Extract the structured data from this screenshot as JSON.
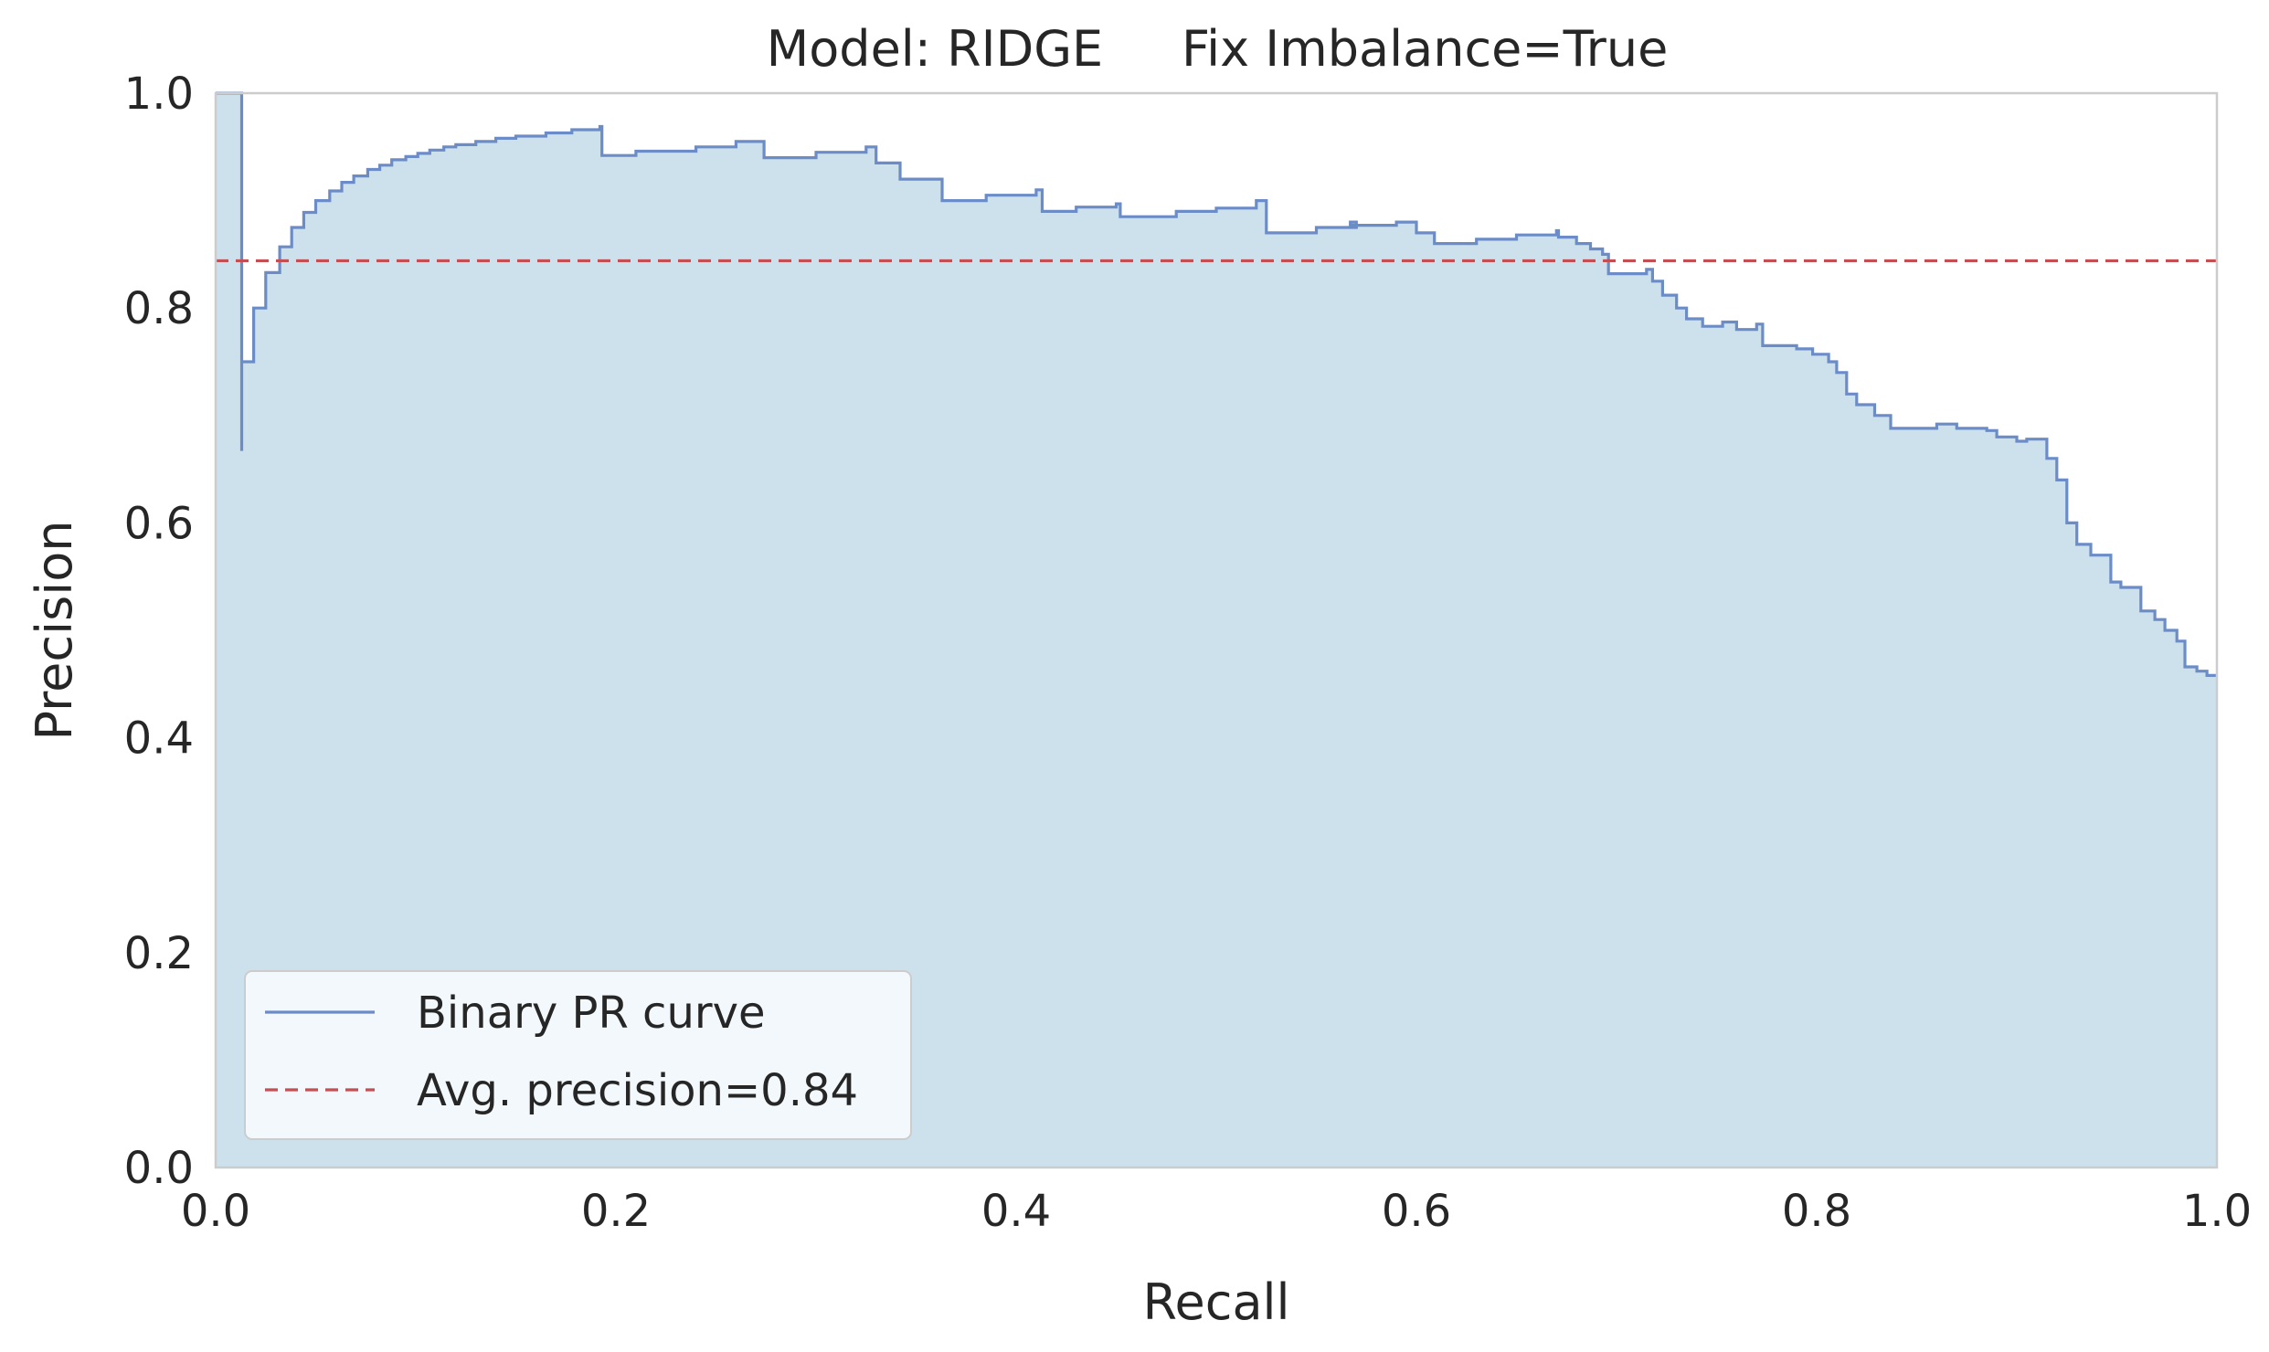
{
  "chart_data": {
    "type": "area",
    "title": "Model: RIDGE     Fix Imbalance=True",
    "xlabel": "Recall",
    "ylabel": "Precision",
    "xlim": [
      0.0,
      1.0
    ],
    "ylim": [
      0.0,
      1.0
    ],
    "x_ticks": [
      "0.0",
      "0.2",
      "0.4",
      "0.6",
      "0.8",
      "1.0"
    ],
    "y_ticks": [
      "0.0",
      "0.2",
      "0.4",
      "0.6",
      "0.8",
      "1.0"
    ],
    "grid": false,
    "legend_position": "lower-left",
    "colors": {
      "curve": "#6b8cc7",
      "fill": "#cce1ec",
      "avg_line": "#c44e52",
      "frame": "#cccccc",
      "legend_bg": "#f2f8fb"
    },
    "series": [
      {
        "name": "Binary PR curve",
        "style": "step-post",
        "filled": true,
        "points": [
          [
            0.0,
            1.0
          ],
          [
            0.013,
            1.0
          ],
          [
            0.013,
            0.667
          ],
          [
            0.013,
            0.75
          ],
          [
            0.019,
            0.75
          ],
          [
            0.019,
            0.8
          ],
          [
            0.025,
            0.8
          ],
          [
            0.025,
            0.833
          ],
          [
            0.032,
            0.833
          ],
          [
            0.032,
            0.857
          ],
          [
            0.038,
            0.857
          ],
          [
            0.038,
            0.875
          ],
          [
            0.044,
            0.875
          ],
          [
            0.044,
            0.889
          ],
          [
            0.05,
            0.889
          ],
          [
            0.05,
            0.9
          ],
          [
            0.057,
            0.9
          ],
          [
            0.057,
            0.909
          ],
          [
            0.063,
            0.909
          ],
          [
            0.063,
            0.917
          ],
          [
            0.069,
            0.917
          ],
          [
            0.069,
            0.923
          ],
          [
            0.076,
            0.923
          ],
          [
            0.076,
            0.929
          ],
          [
            0.082,
            0.929
          ],
          [
            0.082,
            0.933
          ],
          [
            0.088,
            0.933
          ],
          [
            0.088,
            0.938
          ],
          [
            0.095,
            0.938
          ],
          [
            0.095,
            0.941
          ],
          [
            0.101,
            0.941
          ],
          [
            0.101,
            0.944
          ],
          [
            0.107,
            0.944
          ],
          [
            0.107,
            0.947
          ],
          [
            0.114,
            0.947
          ],
          [
            0.114,
            0.95
          ],
          [
            0.12,
            0.95
          ],
          [
            0.12,
            0.952
          ],
          [
            0.13,
            0.952
          ],
          [
            0.13,
            0.955
          ],
          [
            0.14,
            0.955
          ],
          [
            0.14,
            0.958
          ],
          [
            0.15,
            0.958
          ],
          [
            0.15,
            0.96
          ],
          [
            0.165,
            0.96
          ],
          [
            0.165,
            0.963
          ],
          [
            0.178,
            0.963
          ],
          [
            0.178,
            0.966
          ],
          [
            0.192,
            0.966
          ],
          [
            0.192,
            0.969
          ],
          [
            0.193,
            0.969
          ],
          [
            0.193,
            0.942
          ],
          [
            0.21,
            0.942
          ],
          [
            0.21,
            0.946
          ],
          [
            0.24,
            0.946
          ],
          [
            0.24,
            0.95
          ],
          [
            0.26,
            0.95
          ],
          [
            0.26,
            0.955
          ],
          [
            0.274,
            0.955
          ],
          [
            0.274,
            0.94
          ],
          [
            0.3,
            0.94
          ],
          [
            0.3,
            0.945
          ],
          [
            0.325,
            0.945
          ],
          [
            0.325,
            0.95
          ],
          [
            0.33,
            0.95
          ],
          [
            0.33,
            0.935
          ],
          [
            0.342,
            0.935
          ],
          [
            0.342,
            0.92
          ],
          [
            0.363,
            0.92
          ],
          [
            0.363,
            0.9
          ],
          [
            0.385,
            0.9
          ],
          [
            0.385,
            0.905
          ],
          [
            0.41,
            0.905
          ],
          [
            0.41,
            0.91
          ],
          [
            0.413,
            0.91
          ],
          [
            0.413,
            0.89
          ],
          [
            0.43,
            0.89
          ],
          [
            0.43,
            0.894
          ],
          [
            0.45,
            0.894
          ],
          [
            0.45,
            0.897
          ],
          [
            0.452,
            0.897
          ],
          [
            0.452,
            0.885
          ],
          [
            0.48,
            0.885
          ],
          [
            0.48,
            0.89
          ],
          [
            0.5,
            0.89
          ],
          [
            0.5,
            0.893
          ],
          [
            0.52,
            0.893
          ],
          [
            0.52,
            0.9
          ],
          [
            0.525,
            0.9
          ],
          [
            0.525,
            0.87
          ],
          [
            0.55,
            0.87
          ],
          [
            0.55,
            0.875
          ],
          [
            0.57,
            0.875
          ],
          [
            0.57,
            0.88
          ],
          [
            0.567,
            0.88
          ],
          [
            0.567,
            0.877
          ],
          [
            0.59,
            0.877
          ],
          [
            0.59,
            0.88
          ],
          [
            0.6,
            0.88
          ],
          [
            0.6,
            0.87
          ],
          [
            0.609,
            0.87
          ],
          [
            0.609,
            0.86
          ],
          [
            0.63,
            0.86
          ],
          [
            0.63,
            0.864
          ],
          [
            0.65,
            0.864
          ],
          [
            0.65,
            0.868
          ],
          [
            0.67,
            0.868
          ],
          [
            0.67,
            0.872
          ],
          [
            0.671,
            0.872
          ],
          [
            0.671,
            0.866
          ],
          [
            0.68,
            0.866
          ],
          [
            0.68,
            0.86
          ],
          [
            0.687,
            0.86
          ],
          [
            0.687,
            0.855
          ],
          [
            0.693,
            0.855
          ],
          [
            0.693,
            0.85
          ],
          [
            0.696,
            0.85
          ],
          [
            0.696,
            0.832
          ],
          [
            0.715,
            0.832
          ],
          [
            0.715,
            0.836
          ],
          [
            0.718,
            0.836
          ],
          [
            0.718,
            0.825
          ],
          [
            0.723,
            0.825
          ],
          [
            0.723,
            0.812
          ],
          [
            0.73,
            0.812
          ],
          [
            0.73,
            0.8
          ],
          [
            0.735,
            0.8
          ],
          [
            0.735,
            0.79
          ],
          [
            0.743,
            0.79
          ],
          [
            0.743,
            0.783
          ],
          [
            0.753,
            0.783
          ],
          [
            0.753,
            0.787
          ],
          [
            0.76,
            0.787
          ],
          [
            0.76,
            0.78
          ],
          [
            0.77,
            0.78
          ],
          [
            0.77,
            0.785
          ],
          [
            0.773,
            0.785
          ],
          [
            0.773,
            0.765
          ],
          [
            0.79,
            0.765
          ],
          [
            0.79,
            0.762
          ],
          [
            0.798,
            0.762
          ],
          [
            0.798,
            0.757
          ],
          [
            0.806,
            0.757
          ],
          [
            0.806,
            0.75
          ],
          [
            0.81,
            0.75
          ],
          [
            0.81,
            0.74
          ],
          [
            0.815,
            0.74
          ],
          [
            0.815,
            0.72
          ],
          [
            0.82,
            0.72
          ],
          [
            0.82,
            0.71
          ],
          [
            0.829,
            0.71
          ],
          [
            0.829,
            0.7
          ],
          [
            0.837,
            0.7
          ],
          [
            0.837,
            0.688
          ],
          [
            0.86,
            0.688
          ],
          [
            0.86,
            0.692
          ],
          [
            0.87,
            0.692
          ],
          [
            0.87,
            0.688
          ],
          [
            0.885,
            0.688
          ],
          [
            0.885,
            0.686
          ],
          [
            0.89,
            0.686
          ],
          [
            0.89,
            0.68
          ],
          [
            0.9,
            0.68
          ],
          [
            0.9,
            0.676
          ],
          [
            0.905,
            0.676
          ],
          [
            0.905,
            0.678
          ],
          [
            0.915,
            0.678
          ],
          [
            0.915,
            0.66
          ],
          [
            0.92,
            0.66
          ],
          [
            0.92,
            0.64
          ],
          [
            0.925,
            0.64
          ],
          [
            0.925,
            0.6
          ],
          [
            0.93,
            0.6
          ],
          [
            0.93,
            0.58
          ],
          [
            0.937,
            0.58
          ],
          [
            0.937,
            0.57
          ],
          [
            0.947,
            0.57
          ],
          [
            0.947,
            0.545
          ],
          [
            0.952,
            0.545
          ],
          [
            0.952,
            0.54
          ],
          [
            0.962,
            0.54
          ],
          [
            0.962,
            0.518
          ],
          [
            0.969,
            0.518
          ],
          [
            0.969,
            0.51
          ],
          [
            0.974,
            0.51
          ],
          [
            0.974,
            0.5
          ],
          [
            0.98,
            0.5
          ],
          [
            0.98,
            0.49
          ],
          [
            0.984,
            0.49
          ],
          [
            0.984,
            0.466
          ],
          [
            0.99,
            0.466
          ],
          [
            0.99,
            0.462
          ],
          [
            0.995,
            0.462
          ],
          [
            0.995,
            0.458
          ],
          [
            1.0,
            0.458
          ]
        ]
      },
      {
        "name": "Avg. precision=0.84",
        "style": "dashed",
        "y": 0.844
      }
    ]
  }
}
